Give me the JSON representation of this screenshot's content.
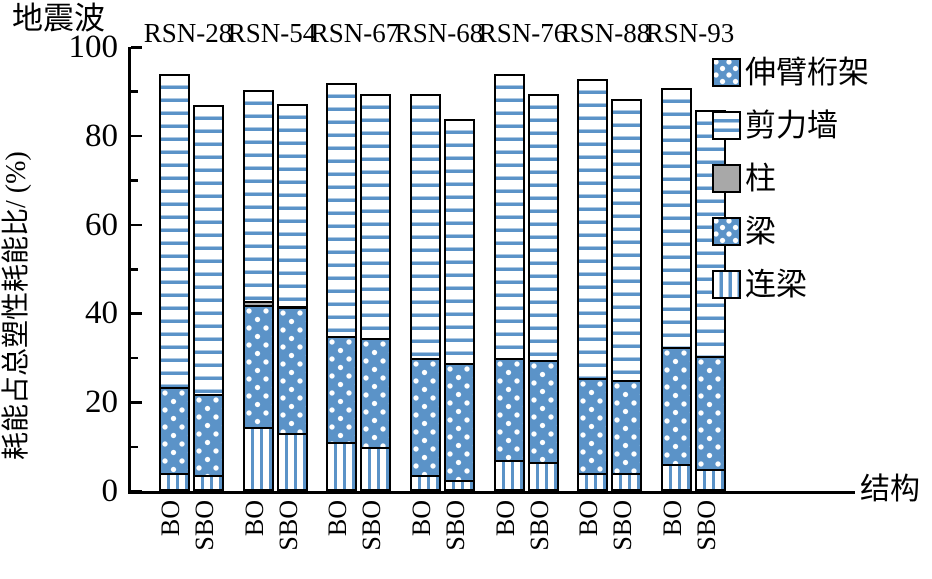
{
  "figure": {
    "top_left_axis_label": "地震波",
    "ylabel": "耗能占总塑性耗能比/ (%)",
    "xlabel": "结构"
  },
  "chart_data": {
    "type": "bar",
    "stacked": true,
    "grid": false,
    "legend_position": "top-right",
    "ylim": [
      0,
      100
    ],
    "yticks_major": [
      0,
      20,
      40,
      60,
      80,
      100
    ],
    "yticks_minor": [
      10,
      30,
      50,
      70,
      90
    ],
    "categories": [
      "RSN-28",
      "RSN-54",
      "RSN-67",
      "RSN-68",
      "RSN-76",
      "RSN-88",
      "RSN-93"
    ],
    "bar_labels": [
      "BO",
      "SBO"
    ],
    "colors": {
      "pattern_blue": "#5b93c8",
      "column_gray": "#a8a8a8",
      "border_black": "#000000",
      "background": "#ffffff"
    },
    "legend": [
      {
        "id": "outrigger-truss",
        "label": "伸臂桁架",
        "pattern": "dots"
      },
      {
        "id": "shear-wall",
        "label": "剪力墙",
        "pattern": "hlines"
      },
      {
        "id": "column",
        "label": "柱",
        "pattern": "solid-gray"
      },
      {
        "id": "beam",
        "label": "梁",
        "pattern": "dots"
      },
      {
        "id": "coupling-beam",
        "label": "连梁",
        "pattern": "vlines"
      }
    ],
    "stack_order_bottom_to_top": [
      "coupling-beam",
      "beam",
      "column",
      "shear-wall",
      "outrigger-truss"
    ],
    "bars": [
      {
        "group": "RSN-28",
        "label": "BO",
        "values": {
          "coupling-beam": 4.0,
          "beam": 20.0,
          "column": 0,
          "shear-wall": 71.0,
          "outrigger-truss": 0
        },
        "total": 95.0
      },
      {
        "group": "RSN-28",
        "label": "SBO",
        "values": {
          "coupling-beam": 3.5,
          "beam": 19.0,
          "column": 0,
          "shear-wall": 65.5,
          "outrigger-truss": 0
        },
        "total": 88.0
      },
      {
        "group": "RSN-54",
        "label": "BO",
        "values": {
          "coupling-beam": 14.5,
          "beam": 28.0,
          "column": 1.5,
          "shear-wall": 48.0,
          "outrigger-truss": 0
        },
        "total": 92.0
      },
      {
        "group": "RSN-54",
        "label": "SBO",
        "values": {
          "coupling-beam": 13.0,
          "beam": 29.0,
          "column": 0.5,
          "shear-wall": 46.0,
          "outrigger-truss": 0
        },
        "total": 88.5
      },
      {
        "group": "RSN-67",
        "label": "BO",
        "values": {
          "coupling-beam": 11.0,
          "beam": 24.5,
          "column": 0,
          "shear-wall": 57.5,
          "outrigger-truss": 0
        },
        "total": 93.0
      },
      {
        "group": "RSN-67",
        "label": "SBO",
        "values": {
          "coupling-beam": 10.0,
          "beam": 25.0,
          "column": 0,
          "shear-wall": 55.5,
          "outrigger-truss": 0
        },
        "total": 90.5
      },
      {
        "group": "RSN-68",
        "label": "BO",
        "values": {
          "coupling-beam": 3.5,
          "beam": 27.0,
          "column": 0,
          "shear-wall": 60.0,
          "outrigger-truss": 0
        },
        "total": 90.5
      },
      {
        "group": "RSN-68",
        "label": "SBO",
        "values": {
          "coupling-beam": 2.5,
          "beam": 27.0,
          "column": 0,
          "shear-wall": 55.5,
          "outrigger-truss": 0
        },
        "total": 85.0
      },
      {
        "group": "RSN-76",
        "label": "BO",
        "values": {
          "coupling-beam": 7.0,
          "beam": 23.5,
          "column": 0,
          "shear-wall": 64.5,
          "outrigger-truss": 0
        },
        "total": 95.0
      },
      {
        "group": "RSN-76",
        "label": "SBO",
        "values": {
          "coupling-beam": 6.5,
          "beam": 23.5,
          "column": 0,
          "shear-wall": 60.5,
          "outrigger-truss": 0
        },
        "total": 90.5
      },
      {
        "group": "RSN-88",
        "label": "BO",
        "values": {
          "coupling-beam": 4.0,
          "beam": 22.0,
          "column": 0,
          "shear-wall": 68.0,
          "outrigger-truss": 0
        },
        "total": 94.0
      },
      {
        "group": "RSN-88",
        "label": "SBO",
        "values": {
          "coupling-beam": 4.0,
          "beam": 21.5,
          "column": 0,
          "shear-wall": 64.0,
          "outrigger-truss": 0
        },
        "total": 89.5
      },
      {
        "group": "RSN-93",
        "label": "BO",
        "values": {
          "coupling-beam": 6.0,
          "beam": 27.0,
          "column": 0,
          "shear-wall": 59.0,
          "outrigger-truss": 0
        },
        "total": 92.0
      },
      {
        "group": "RSN-93",
        "label": "SBO",
        "values": {
          "coupling-beam": 5.0,
          "beam": 26.0,
          "column": 0,
          "shear-wall": 56.0,
          "outrigger-truss": 0
        },
        "total": 87.0
      }
    ]
  }
}
